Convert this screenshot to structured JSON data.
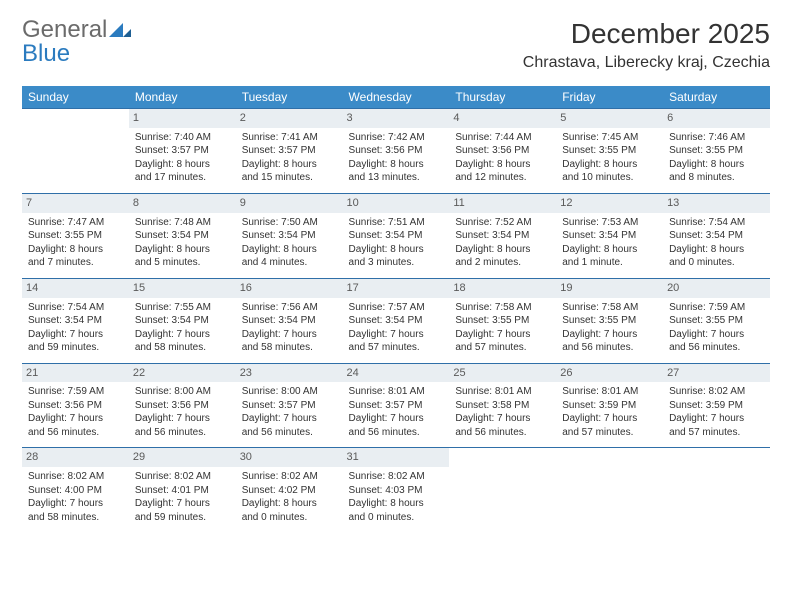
{
  "logo": {
    "general": "General",
    "blue": "Blue"
  },
  "title": "December 2025",
  "location": "Chrastava, Liberecky kraj, Czechia",
  "colors": {
    "header_bg": "#3b8bc8",
    "header_text": "#ffffff",
    "daynum_bg": "#e9eef2",
    "daynum_text": "#5a5a5a",
    "row_border": "#2f6fa8",
    "body_text": "#333333",
    "logo_gray": "#6b6b6b",
    "logo_blue": "#2b7bbf"
  },
  "weekdays": [
    "Sunday",
    "Monday",
    "Tuesday",
    "Wednesday",
    "Thursday",
    "Friday",
    "Saturday"
  ],
  "weeks": [
    [
      null,
      {
        "n": "1",
        "sr": "Sunrise: 7:40 AM",
        "ss": "Sunset: 3:57 PM",
        "d1": "Daylight: 8 hours",
        "d2": "and 17 minutes."
      },
      {
        "n": "2",
        "sr": "Sunrise: 7:41 AM",
        "ss": "Sunset: 3:57 PM",
        "d1": "Daylight: 8 hours",
        "d2": "and 15 minutes."
      },
      {
        "n": "3",
        "sr": "Sunrise: 7:42 AM",
        "ss": "Sunset: 3:56 PM",
        "d1": "Daylight: 8 hours",
        "d2": "and 13 minutes."
      },
      {
        "n": "4",
        "sr": "Sunrise: 7:44 AM",
        "ss": "Sunset: 3:56 PM",
        "d1": "Daylight: 8 hours",
        "d2": "and 12 minutes."
      },
      {
        "n": "5",
        "sr": "Sunrise: 7:45 AM",
        "ss": "Sunset: 3:55 PM",
        "d1": "Daylight: 8 hours",
        "d2": "and 10 minutes."
      },
      {
        "n": "6",
        "sr": "Sunrise: 7:46 AM",
        "ss": "Sunset: 3:55 PM",
        "d1": "Daylight: 8 hours",
        "d2": "and 8 minutes."
      }
    ],
    [
      {
        "n": "7",
        "sr": "Sunrise: 7:47 AM",
        "ss": "Sunset: 3:55 PM",
        "d1": "Daylight: 8 hours",
        "d2": "and 7 minutes."
      },
      {
        "n": "8",
        "sr": "Sunrise: 7:48 AM",
        "ss": "Sunset: 3:54 PM",
        "d1": "Daylight: 8 hours",
        "d2": "and 5 minutes."
      },
      {
        "n": "9",
        "sr": "Sunrise: 7:50 AM",
        "ss": "Sunset: 3:54 PM",
        "d1": "Daylight: 8 hours",
        "d2": "and 4 minutes."
      },
      {
        "n": "10",
        "sr": "Sunrise: 7:51 AM",
        "ss": "Sunset: 3:54 PM",
        "d1": "Daylight: 8 hours",
        "d2": "and 3 minutes."
      },
      {
        "n": "11",
        "sr": "Sunrise: 7:52 AM",
        "ss": "Sunset: 3:54 PM",
        "d1": "Daylight: 8 hours",
        "d2": "and 2 minutes."
      },
      {
        "n": "12",
        "sr": "Sunrise: 7:53 AM",
        "ss": "Sunset: 3:54 PM",
        "d1": "Daylight: 8 hours",
        "d2": "and 1 minute."
      },
      {
        "n": "13",
        "sr": "Sunrise: 7:54 AM",
        "ss": "Sunset: 3:54 PM",
        "d1": "Daylight: 8 hours",
        "d2": "and 0 minutes."
      }
    ],
    [
      {
        "n": "14",
        "sr": "Sunrise: 7:54 AM",
        "ss": "Sunset: 3:54 PM",
        "d1": "Daylight: 7 hours",
        "d2": "and 59 minutes."
      },
      {
        "n": "15",
        "sr": "Sunrise: 7:55 AM",
        "ss": "Sunset: 3:54 PM",
        "d1": "Daylight: 7 hours",
        "d2": "and 58 minutes."
      },
      {
        "n": "16",
        "sr": "Sunrise: 7:56 AM",
        "ss": "Sunset: 3:54 PM",
        "d1": "Daylight: 7 hours",
        "d2": "and 58 minutes."
      },
      {
        "n": "17",
        "sr": "Sunrise: 7:57 AM",
        "ss": "Sunset: 3:54 PM",
        "d1": "Daylight: 7 hours",
        "d2": "and 57 minutes."
      },
      {
        "n": "18",
        "sr": "Sunrise: 7:58 AM",
        "ss": "Sunset: 3:55 PM",
        "d1": "Daylight: 7 hours",
        "d2": "and 57 minutes."
      },
      {
        "n": "19",
        "sr": "Sunrise: 7:58 AM",
        "ss": "Sunset: 3:55 PM",
        "d1": "Daylight: 7 hours",
        "d2": "and 56 minutes."
      },
      {
        "n": "20",
        "sr": "Sunrise: 7:59 AM",
        "ss": "Sunset: 3:55 PM",
        "d1": "Daylight: 7 hours",
        "d2": "and 56 minutes."
      }
    ],
    [
      {
        "n": "21",
        "sr": "Sunrise: 7:59 AM",
        "ss": "Sunset: 3:56 PM",
        "d1": "Daylight: 7 hours",
        "d2": "and 56 minutes."
      },
      {
        "n": "22",
        "sr": "Sunrise: 8:00 AM",
        "ss": "Sunset: 3:56 PM",
        "d1": "Daylight: 7 hours",
        "d2": "and 56 minutes."
      },
      {
        "n": "23",
        "sr": "Sunrise: 8:00 AM",
        "ss": "Sunset: 3:57 PM",
        "d1": "Daylight: 7 hours",
        "d2": "and 56 minutes."
      },
      {
        "n": "24",
        "sr": "Sunrise: 8:01 AM",
        "ss": "Sunset: 3:57 PM",
        "d1": "Daylight: 7 hours",
        "d2": "and 56 minutes."
      },
      {
        "n": "25",
        "sr": "Sunrise: 8:01 AM",
        "ss": "Sunset: 3:58 PM",
        "d1": "Daylight: 7 hours",
        "d2": "and 56 minutes."
      },
      {
        "n": "26",
        "sr": "Sunrise: 8:01 AM",
        "ss": "Sunset: 3:59 PM",
        "d1": "Daylight: 7 hours",
        "d2": "and 57 minutes."
      },
      {
        "n": "27",
        "sr": "Sunrise: 8:02 AM",
        "ss": "Sunset: 3:59 PM",
        "d1": "Daylight: 7 hours",
        "d2": "and 57 minutes."
      }
    ],
    [
      {
        "n": "28",
        "sr": "Sunrise: 8:02 AM",
        "ss": "Sunset: 4:00 PM",
        "d1": "Daylight: 7 hours",
        "d2": "and 58 minutes."
      },
      {
        "n": "29",
        "sr": "Sunrise: 8:02 AM",
        "ss": "Sunset: 4:01 PM",
        "d1": "Daylight: 7 hours",
        "d2": "and 59 minutes."
      },
      {
        "n": "30",
        "sr": "Sunrise: 8:02 AM",
        "ss": "Sunset: 4:02 PM",
        "d1": "Daylight: 8 hours",
        "d2": "and 0 minutes."
      },
      {
        "n": "31",
        "sr": "Sunrise: 8:02 AM",
        "ss": "Sunset: 4:03 PM",
        "d1": "Daylight: 8 hours",
        "d2": "and 0 minutes."
      },
      null,
      null,
      null
    ]
  ]
}
